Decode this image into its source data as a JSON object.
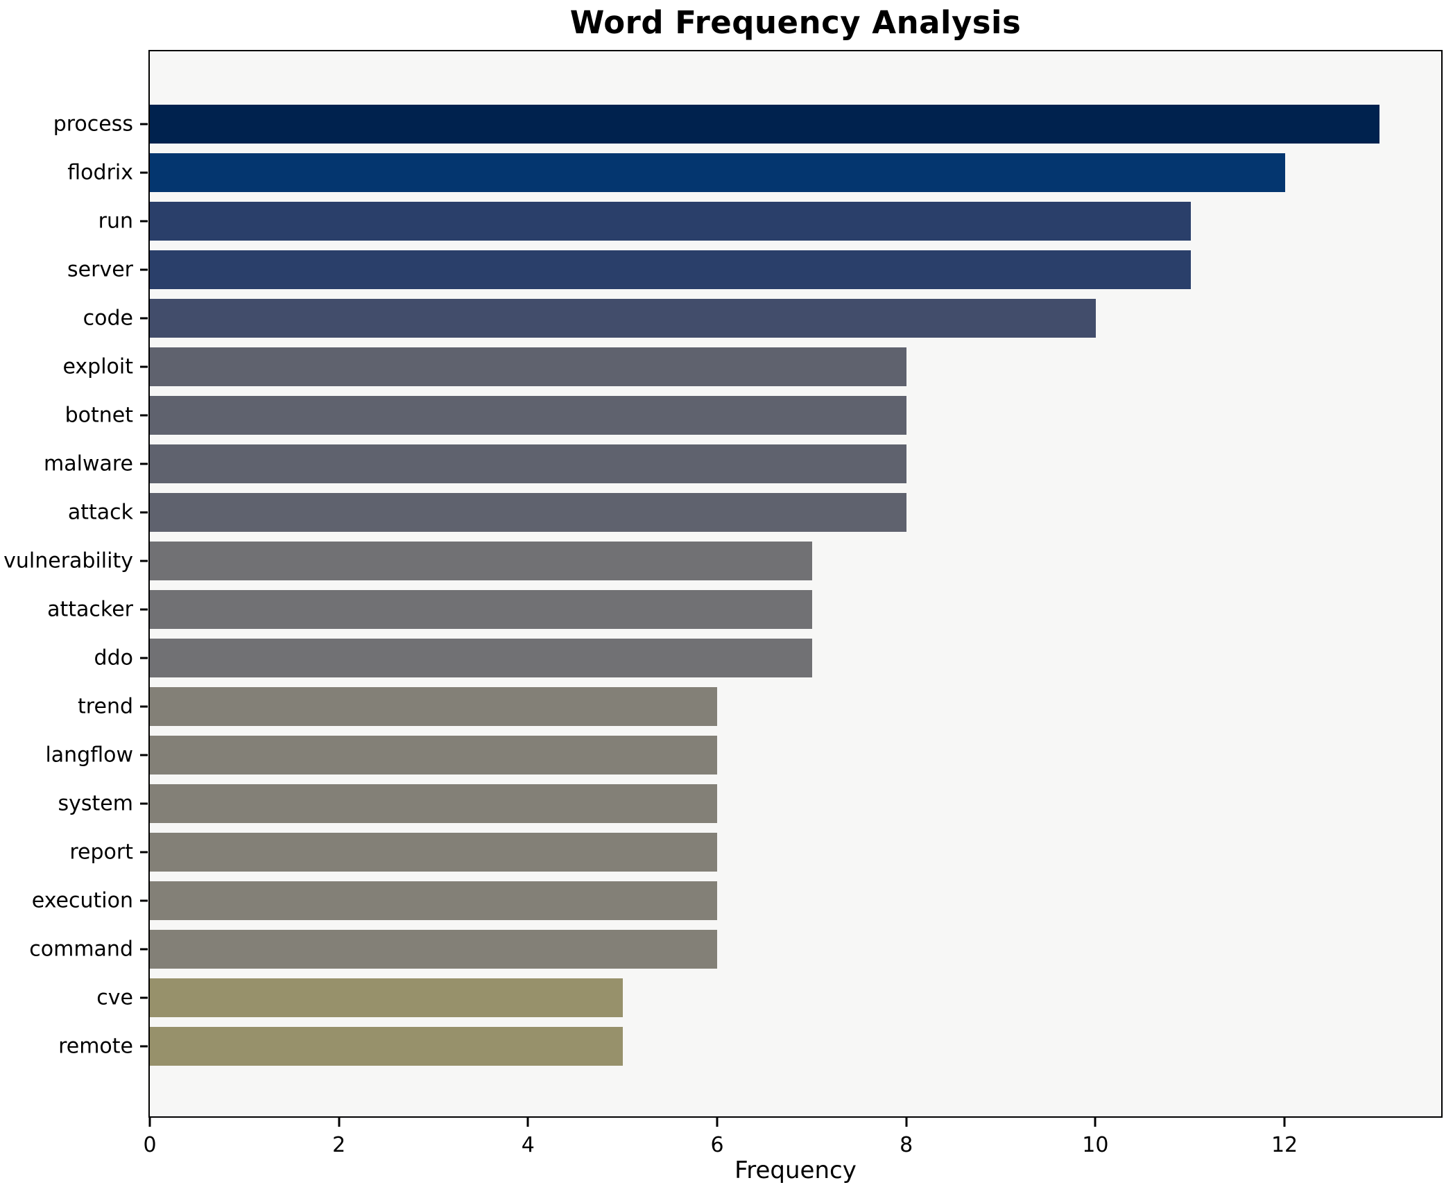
{
  "chart_data": {
    "type": "bar",
    "orientation": "horizontal",
    "title": "Word Frequency Analysis",
    "xlabel": "Frequency",
    "ylabel": "",
    "categories": [
      "process",
      "flodrix",
      "run",
      "server",
      "code",
      "exploit",
      "botnet",
      "malware",
      "attack",
      "vulnerability",
      "attacker",
      "ddo",
      "trend",
      "langflow",
      "system",
      "report",
      "execution",
      "command",
      "cve",
      "remote"
    ],
    "values": [
      13,
      12,
      11,
      11,
      10,
      8,
      8,
      8,
      8,
      7,
      7,
      7,
      6,
      6,
      6,
      6,
      6,
      6,
      5,
      5
    ],
    "bar_colors": [
      "#00224e",
      "#04366f",
      "#2a3f6a",
      "#2a3f6a",
      "#424d6b",
      "#5f626e",
      "#5f626e",
      "#5f626e",
      "#5f626e",
      "#717174",
      "#717174",
      "#717174",
      "#838077",
      "#838077",
      "#838077",
      "#838077",
      "#838077",
      "#838077",
      "#97916b",
      "#97916b"
    ],
    "x_ticks": [
      0,
      2,
      4,
      6,
      8,
      10,
      12
    ],
    "xlim": [
      0,
      13.65
    ],
    "grid": false,
    "legend": null,
    "plot_background": "#f7f7f6",
    "figure_background": "#ffffff",
    "axis_color": "#000000"
  }
}
